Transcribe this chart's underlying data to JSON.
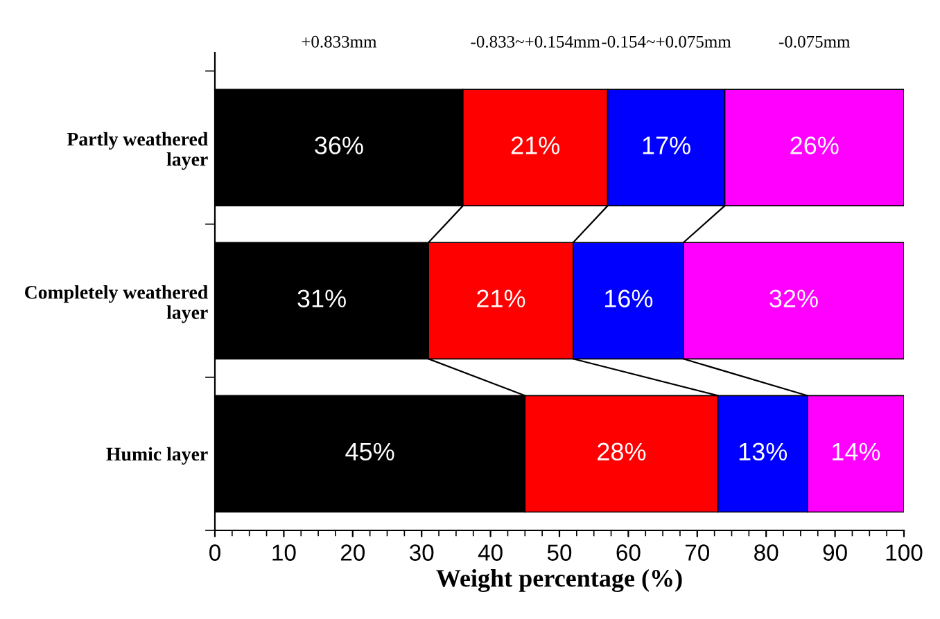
{
  "chart_data": {
    "type": "bar",
    "orientation": "horizontal",
    "stacked": true,
    "categories": [
      "Partly weathered\nlayer",
      "Completely weathered\nlayer",
      "Humic layer"
    ],
    "series": [
      {
        "name": "+0.833mm",
        "color": "#000000",
        "values": [
          36,
          31,
          45
        ],
        "value_labels": [
          "36%",
          "31%",
          "45%"
        ]
      },
      {
        "name": "-0.833~+0.154mm",
        "color": "#ff0000",
        "values": [
          21,
          21,
          28
        ],
        "value_labels": [
          "21%",
          "21%",
          "28%"
        ]
      },
      {
        "name": "-0.154~+0.075mm",
        "color": "#0000ff",
        "values": [
          17,
          16,
          13
        ],
        "value_labels": [
          "17%",
          "16%",
          "13%"
        ]
      },
      {
        "name": "-0.075mm",
        "color": "#ff00ff",
        "values": [
          26,
          32,
          14
        ],
        "value_labels": [
          "26%",
          "32%",
          "14%"
        ]
      }
    ],
    "xlabel": "Weight percentage (%)",
    "xlim": [
      0,
      100
    ],
    "xticks": [
      0,
      10,
      20,
      30,
      40,
      50,
      60,
      70,
      80,
      90,
      100
    ],
    "grid": false,
    "legend": false
  }
}
